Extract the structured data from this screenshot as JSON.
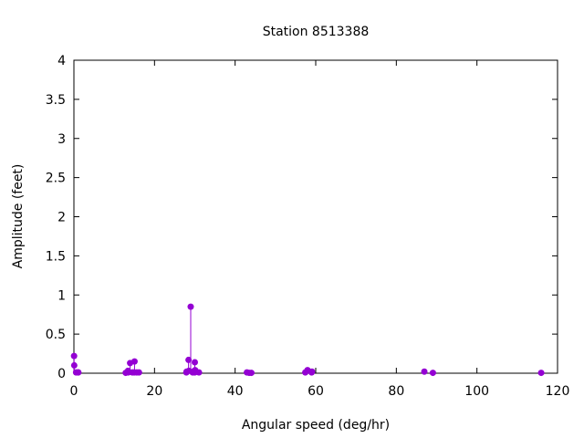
{
  "chart_data": {
    "type": "scatter",
    "title": "Station 8513388",
    "xlabel": "Angular speed (deg/hr)",
    "ylabel": "Amplitude (feet)",
    "xlim": [
      0,
      120
    ],
    "ylim": [
      0,
      4
    ],
    "xticks": [
      "0",
      "20",
      "40",
      "60",
      "80",
      "100",
      "120"
    ],
    "yticks": [
      "0",
      "0.5",
      "1",
      "1.5",
      "2",
      "2.5",
      "3",
      "3.5",
      "4"
    ],
    "grid": false,
    "color": "#9400d3",
    "style": "impulses with points",
    "x": [
      0.041,
      0.082,
      0.544,
      1.015,
      1.098,
      12.85,
      13.4,
      13.47,
      13.94,
      14.5,
      14.96,
      15.04,
      15.59,
      16.14,
      27.9,
      27.97,
      28.44,
      28.51,
      28.98,
      29.46,
      29.53,
      29.96,
      30.0,
      30.08,
      31.02,
      42.93,
      43.48,
      44.03,
      57.42,
      57.97,
      58.98,
      59.07,
      86.95,
      89.07,
      115.94
    ],
    "y": [
      0.22,
      0.1,
      0.01,
      0.01,
      0.01,
      0.005,
      0.03,
      0.01,
      0.13,
      0.01,
      0.01,
      0.15,
      0.01,
      0.01,
      0.01,
      0.02,
      0.17,
      0.03,
      0.85,
      0.01,
      0.02,
      0.01,
      0.14,
      0.04,
      0.01,
      0.01,
      0.005,
      0.005,
      0.01,
      0.04,
      0.01,
      0.02,
      0.02,
      0.005,
      0.005
    ]
  }
}
